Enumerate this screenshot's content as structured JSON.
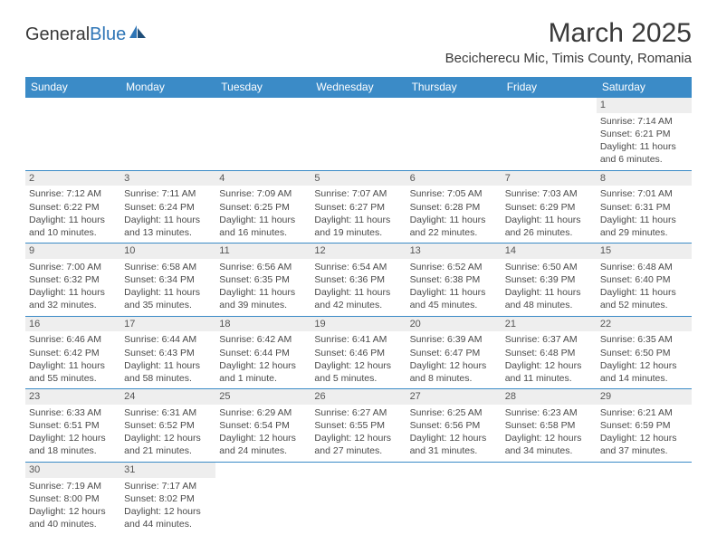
{
  "logo": {
    "text1": "General",
    "text2": "Blue"
  },
  "title": "March 2025",
  "location": "Becicherecu Mic, Timis County, Romania",
  "columns": [
    "Sunday",
    "Monday",
    "Tuesday",
    "Wednesday",
    "Thursday",
    "Friday",
    "Saturday"
  ],
  "colors": {
    "header_bg": "#3b8bc7",
    "header_fg": "#ffffff",
    "daynum_bg": "#eeeeee"
  },
  "weeks": [
    [
      null,
      null,
      null,
      null,
      null,
      null,
      {
        "n": "1",
        "sr": "Sunrise: 7:14 AM",
        "ss": "Sunset: 6:21 PM",
        "dl": "Daylight: 11 hours and 6 minutes."
      }
    ],
    [
      {
        "n": "2",
        "sr": "Sunrise: 7:12 AM",
        "ss": "Sunset: 6:22 PM",
        "dl": "Daylight: 11 hours and 10 minutes."
      },
      {
        "n": "3",
        "sr": "Sunrise: 7:11 AM",
        "ss": "Sunset: 6:24 PM",
        "dl": "Daylight: 11 hours and 13 minutes."
      },
      {
        "n": "4",
        "sr": "Sunrise: 7:09 AM",
        "ss": "Sunset: 6:25 PM",
        "dl": "Daylight: 11 hours and 16 minutes."
      },
      {
        "n": "5",
        "sr": "Sunrise: 7:07 AM",
        "ss": "Sunset: 6:27 PM",
        "dl": "Daylight: 11 hours and 19 minutes."
      },
      {
        "n": "6",
        "sr": "Sunrise: 7:05 AM",
        "ss": "Sunset: 6:28 PM",
        "dl": "Daylight: 11 hours and 22 minutes."
      },
      {
        "n": "7",
        "sr": "Sunrise: 7:03 AM",
        "ss": "Sunset: 6:29 PM",
        "dl": "Daylight: 11 hours and 26 minutes."
      },
      {
        "n": "8",
        "sr": "Sunrise: 7:01 AM",
        "ss": "Sunset: 6:31 PM",
        "dl": "Daylight: 11 hours and 29 minutes."
      }
    ],
    [
      {
        "n": "9",
        "sr": "Sunrise: 7:00 AM",
        "ss": "Sunset: 6:32 PM",
        "dl": "Daylight: 11 hours and 32 minutes."
      },
      {
        "n": "10",
        "sr": "Sunrise: 6:58 AM",
        "ss": "Sunset: 6:34 PM",
        "dl": "Daylight: 11 hours and 35 minutes."
      },
      {
        "n": "11",
        "sr": "Sunrise: 6:56 AM",
        "ss": "Sunset: 6:35 PM",
        "dl": "Daylight: 11 hours and 39 minutes."
      },
      {
        "n": "12",
        "sr": "Sunrise: 6:54 AM",
        "ss": "Sunset: 6:36 PM",
        "dl": "Daylight: 11 hours and 42 minutes."
      },
      {
        "n": "13",
        "sr": "Sunrise: 6:52 AM",
        "ss": "Sunset: 6:38 PM",
        "dl": "Daylight: 11 hours and 45 minutes."
      },
      {
        "n": "14",
        "sr": "Sunrise: 6:50 AM",
        "ss": "Sunset: 6:39 PM",
        "dl": "Daylight: 11 hours and 48 minutes."
      },
      {
        "n": "15",
        "sr": "Sunrise: 6:48 AM",
        "ss": "Sunset: 6:40 PM",
        "dl": "Daylight: 11 hours and 52 minutes."
      }
    ],
    [
      {
        "n": "16",
        "sr": "Sunrise: 6:46 AM",
        "ss": "Sunset: 6:42 PM",
        "dl": "Daylight: 11 hours and 55 minutes."
      },
      {
        "n": "17",
        "sr": "Sunrise: 6:44 AM",
        "ss": "Sunset: 6:43 PM",
        "dl": "Daylight: 11 hours and 58 minutes."
      },
      {
        "n": "18",
        "sr": "Sunrise: 6:42 AM",
        "ss": "Sunset: 6:44 PM",
        "dl": "Daylight: 12 hours and 1 minute."
      },
      {
        "n": "19",
        "sr": "Sunrise: 6:41 AM",
        "ss": "Sunset: 6:46 PM",
        "dl": "Daylight: 12 hours and 5 minutes."
      },
      {
        "n": "20",
        "sr": "Sunrise: 6:39 AM",
        "ss": "Sunset: 6:47 PM",
        "dl": "Daylight: 12 hours and 8 minutes."
      },
      {
        "n": "21",
        "sr": "Sunrise: 6:37 AM",
        "ss": "Sunset: 6:48 PM",
        "dl": "Daylight: 12 hours and 11 minutes."
      },
      {
        "n": "22",
        "sr": "Sunrise: 6:35 AM",
        "ss": "Sunset: 6:50 PM",
        "dl": "Daylight: 12 hours and 14 minutes."
      }
    ],
    [
      {
        "n": "23",
        "sr": "Sunrise: 6:33 AM",
        "ss": "Sunset: 6:51 PM",
        "dl": "Daylight: 12 hours and 18 minutes."
      },
      {
        "n": "24",
        "sr": "Sunrise: 6:31 AM",
        "ss": "Sunset: 6:52 PM",
        "dl": "Daylight: 12 hours and 21 minutes."
      },
      {
        "n": "25",
        "sr": "Sunrise: 6:29 AM",
        "ss": "Sunset: 6:54 PM",
        "dl": "Daylight: 12 hours and 24 minutes."
      },
      {
        "n": "26",
        "sr": "Sunrise: 6:27 AM",
        "ss": "Sunset: 6:55 PM",
        "dl": "Daylight: 12 hours and 27 minutes."
      },
      {
        "n": "27",
        "sr": "Sunrise: 6:25 AM",
        "ss": "Sunset: 6:56 PM",
        "dl": "Daylight: 12 hours and 31 minutes."
      },
      {
        "n": "28",
        "sr": "Sunrise: 6:23 AM",
        "ss": "Sunset: 6:58 PM",
        "dl": "Daylight: 12 hours and 34 minutes."
      },
      {
        "n": "29",
        "sr": "Sunrise: 6:21 AM",
        "ss": "Sunset: 6:59 PM",
        "dl": "Daylight: 12 hours and 37 minutes."
      }
    ],
    [
      {
        "n": "30",
        "sr": "Sunrise: 7:19 AM",
        "ss": "Sunset: 8:00 PM",
        "dl": "Daylight: 12 hours and 40 minutes."
      },
      {
        "n": "31",
        "sr": "Sunrise: 7:17 AM",
        "ss": "Sunset: 8:02 PM",
        "dl": "Daylight: 12 hours and 44 minutes."
      },
      null,
      null,
      null,
      null,
      null
    ]
  ]
}
